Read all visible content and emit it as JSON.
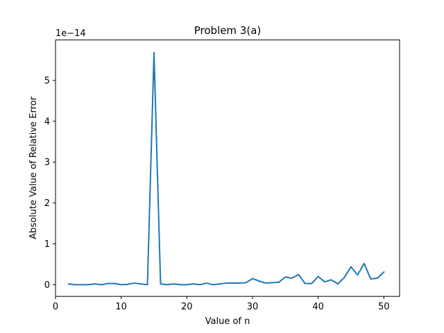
{
  "chart_data": {
    "type": "line",
    "title": "Problem 3(a)",
    "xlabel": "Value of n",
    "ylabel": "Absolute Value of Relative Error",
    "y_offset_label": "1e−14",
    "xlim": [
      0,
      52.4
    ],
    "ylim": [
      -0.285,
      5.99
    ],
    "x_ticks": [
      0,
      10,
      20,
      30,
      40,
      50
    ],
    "y_ticks": [
      0,
      1,
      2,
      3,
      4,
      5
    ],
    "grid": false,
    "series_color": "#1f77b4",
    "series": [
      {
        "x": [
          2,
          3,
          4,
          5,
          6,
          7,
          8,
          9,
          10,
          11,
          12,
          13,
          14,
          15,
          16,
          17,
          18,
          19,
          20,
          21,
          22,
          23,
          24,
          25,
          26,
          27,
          28,
          29,
          30,
          31,
          32,
          33,
          34,
          35,
          36,
          37,
          38,
          39,
          40,
          41,
          42,
          43,
          44,
          45,
          46,
          47,
          48,
          49,
          50
        ],
        "values": [
          0.02,
          0.0,
          0.0,
          0.0,
          0.02,
          0.0,
          0.03,
          0.03,
          0.0,
          0.01,
          0.04,
          0.02,
          0.0,
          5.68,
          0.02,
          0.0,
          0.02,
          0.0,
          0.0,
          0.02,
          0.0,
          0.04,
          0.0,
          0.02,
          0.04,
          0.04,
          0.04,
          0.05,
          0.15,
          0.09,
          0.04,
          0.05,
          0.06,
          0.19,
          0.16,
          0.25,
          0.03,
          0.03,
          0.2,
          0.07,
          0.12,
          0.02,
          0.18,
          0.44,
          0.24,
          0.52,
          0.14,
          0.16,
          0.31
        ]
      }
    ]
  }
}
